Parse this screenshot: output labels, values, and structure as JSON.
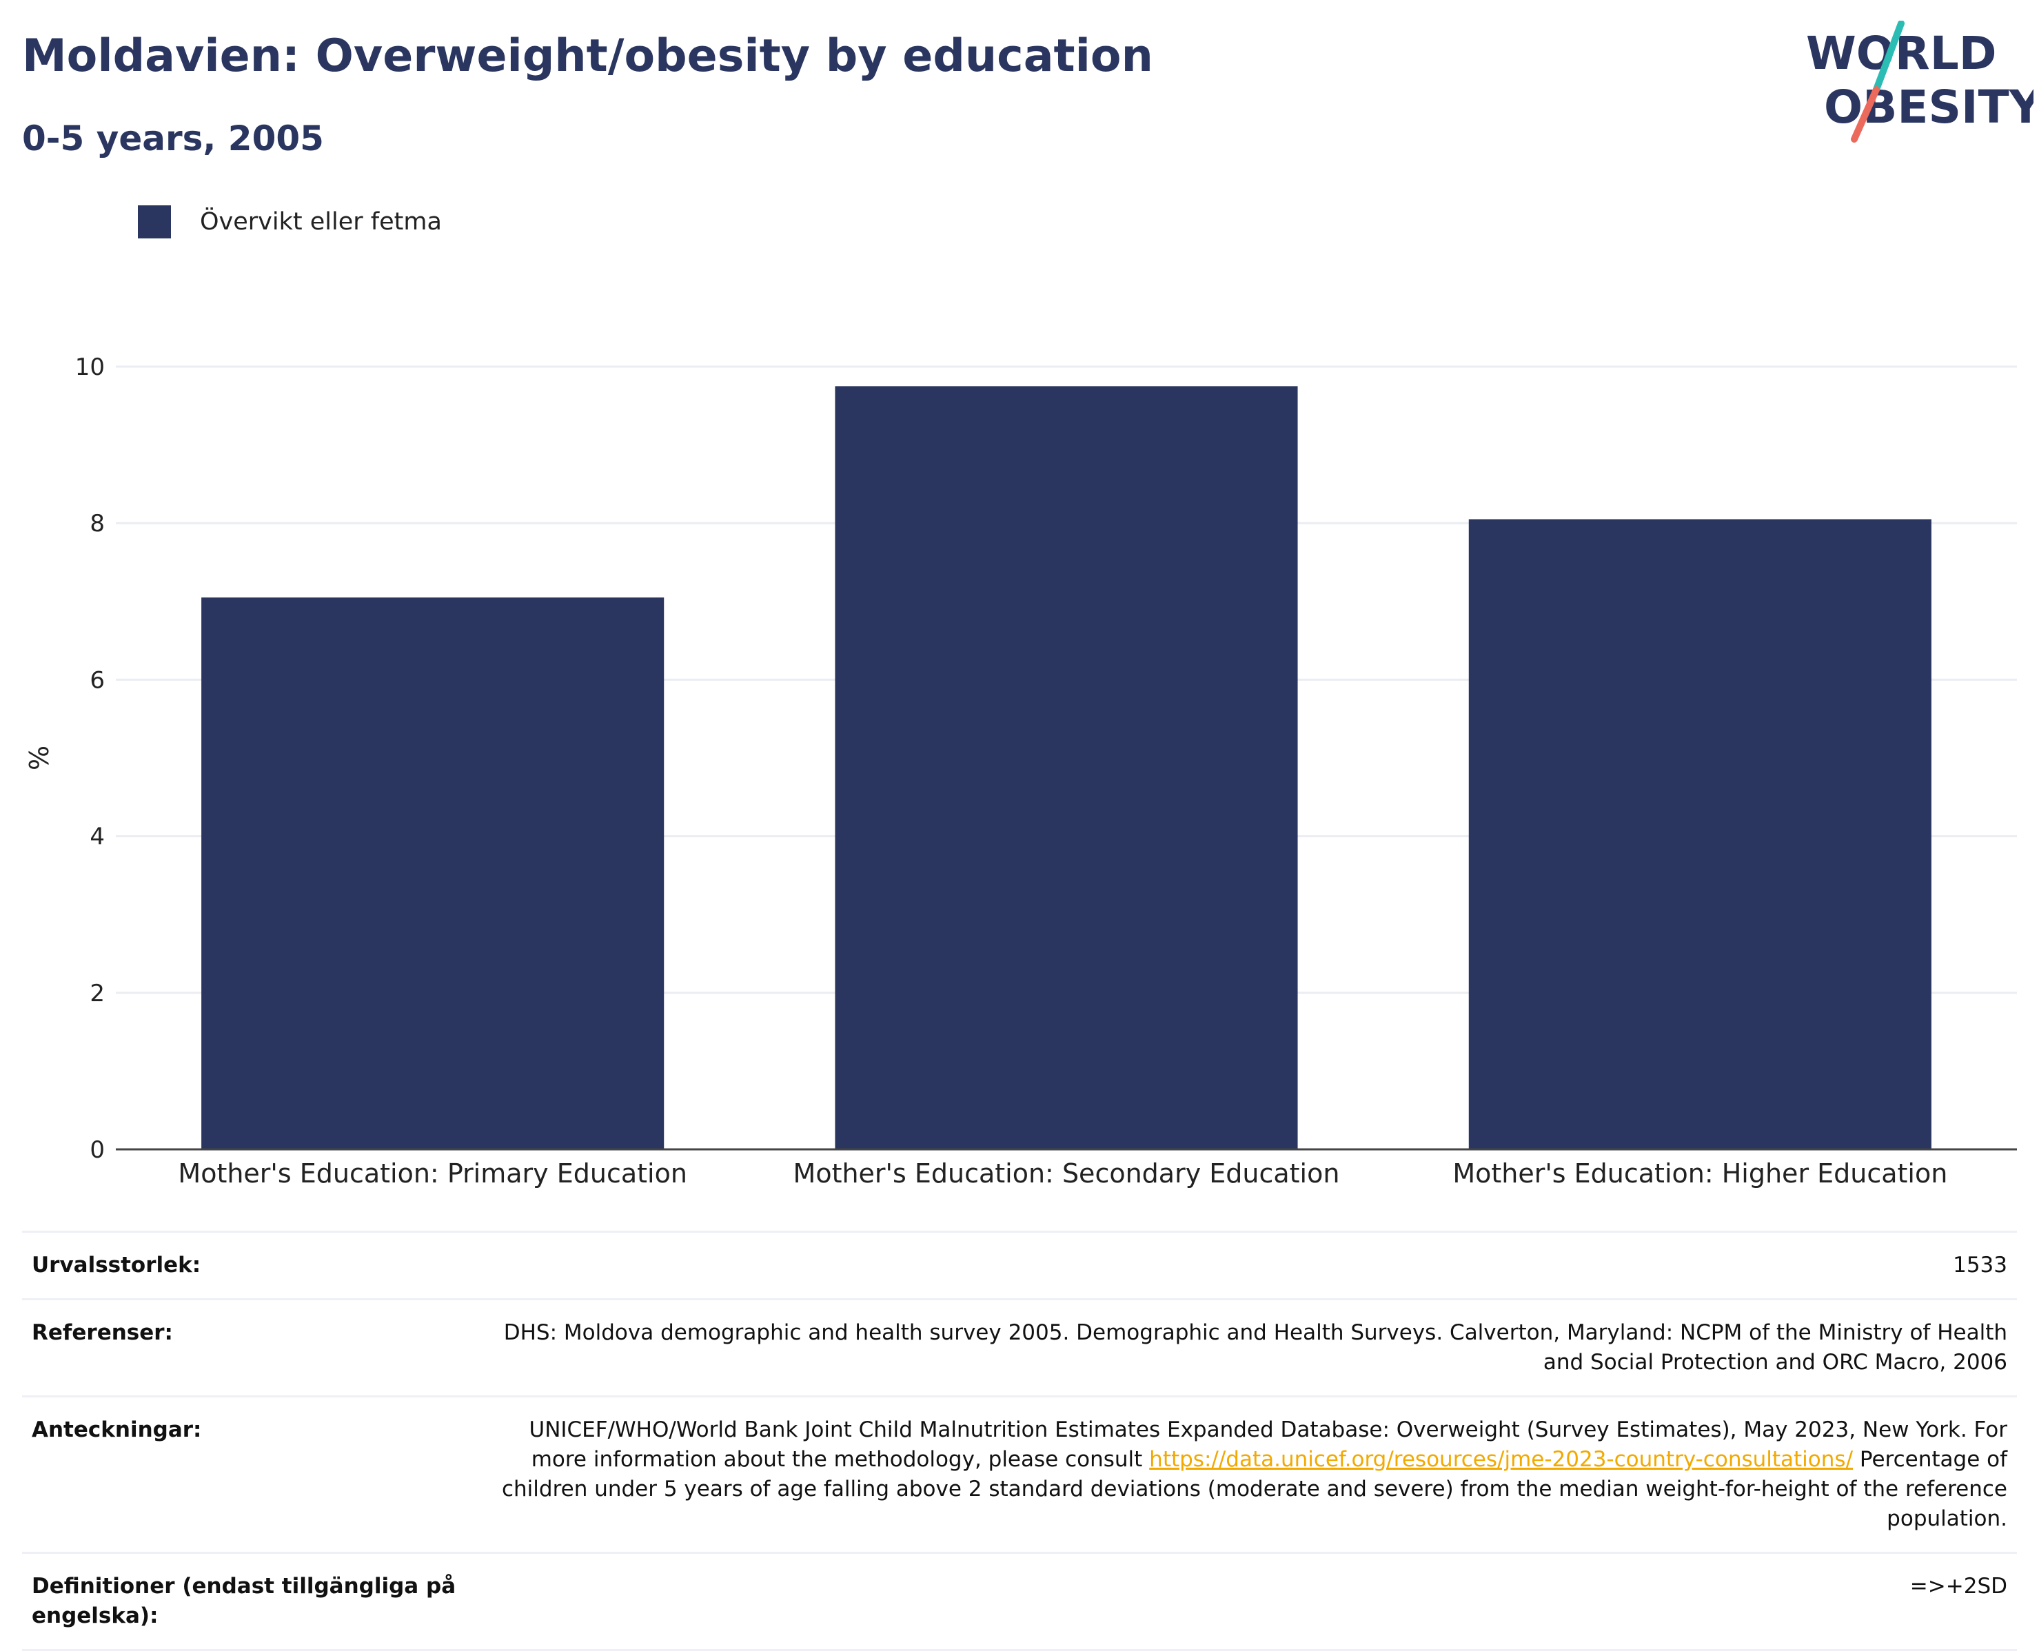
{
  "header": {
    "title": "Moldavien: Overweight/obesity by education",
    "subtitle": "0-5 years, 2005"
  },
  "logo": {
    "line1": "WORLD",
    "line2": "OBESITY",
    "text_color": "#2a365f",
    "accent_teal": "#2bbcb4",
    "accent_coral": "#ec6a5c"
  },
  "chart_data": {
    "type": "bar",
    "categories": [
      "Mother's Education: Primary Education",
      "Mother's Education: Secondary Education",
      "Mother's Education: Higher Education"
    ],
    "series": [
      {
        "name": "Övervikt eller fetma",
        "values": [
          7.05,
          9.75,
          8.05
        ],
        "color": "#2a365f"
      }
    ],
    "ylabel": "%",
    "ylim": [
      0,
      10
    ],
    "yticks": [
      0,
      2,
      4,
      6,
      8,
      10
    ],
    "grid": true,
    "legend": "top-left"
  },
  "info": {
    "sample_size": {
      "label": "Urvalsstorlek:",
      "value": "1533"
    },
    "references": {
      "label": "Referenser:",
      "value": "DHS: Moldova demographic and health survey 2005. Demographic and Health Surveys. Calverton, Maryland: NCPM of the Ministry of Health and Social Protection and ORC Macro, 2006"
    },
    "notes": {
      "label": "Anteckningar:",
      "text_before": "UNICEF/WHO/World Bank Joint Child Malnutrition Estimates Expanded Database: Overweight (Survey Estimates), May 2023, New York. For more information about the methodology, please consult ",
      "link": "https://data.unicef.org/resources/jme-2023-country-consultations/",
      "text_after": " Percentage of children under 5 years of age falling above 2 standard deviations (moderate and severe) from the median weight-for-height of the reference population."
    },
    "definitions": {
      "label": "Definitioner (endast tillgängliga på engelska):",
      "value": "=>+2SD"
    }
  }
}
